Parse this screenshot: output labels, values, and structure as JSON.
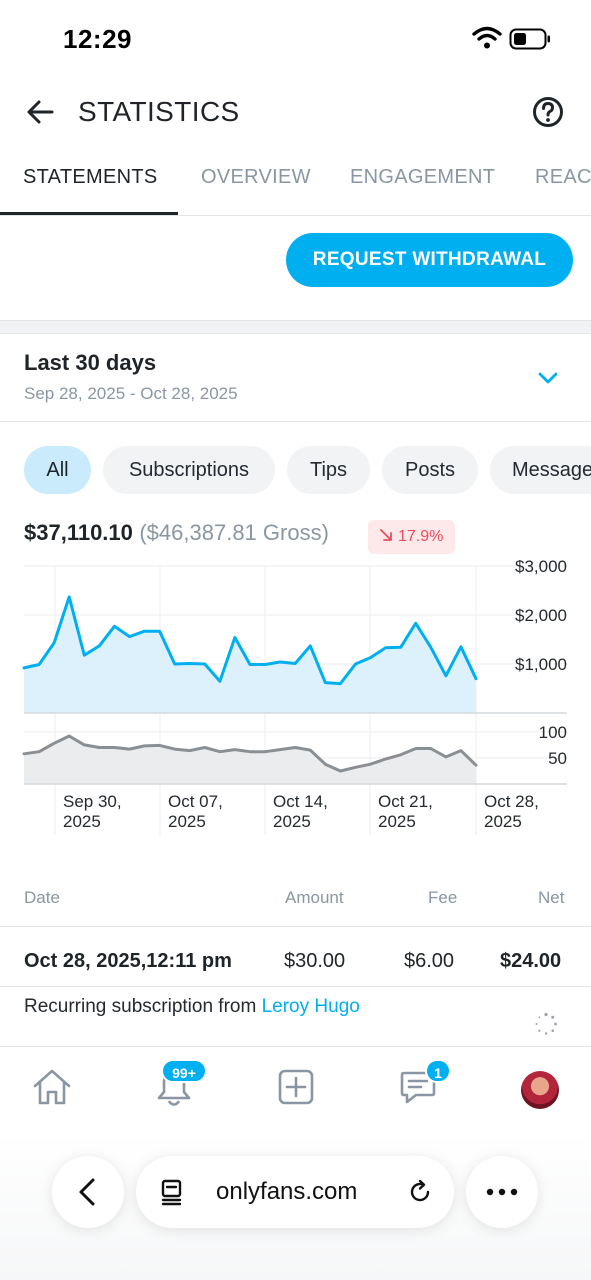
{
  "status_bar": {
    "time": "12:29"
  },
  "header": {
    "title": "STATISTICS"
  },
  "tabs": [
    {
      "label": "STATEMENTS",
      "active": true
    },
    {
      "label": "OVERVIEW",
      "active": false
    },
    {
      "label": "ENGAGEMENT",
      "active": false
    },
    {
      "label": "REACH",
      "active": false
    }
  ],
  "withdraw": {
    "label": "REQUEST WITHDRAWAL"
  },
  "date_range": {
    "title": "Last 30 days",
    "dates": "Sep 28, 2025 - Oct 28, 2025"
  },
  "filters": [
    {
      "label": "All",
      "active": true
    },
    {
      "label": "Subscriptions",
      "active": false
    },
    {
      "label": "Tips",
      "active": false
    },
    {
      "label": "Posts",
      "active": false
    },
    {
      "label": "Messages",
      "active": false
    }
  ],
  "summary": {
    "net": "$37,110.10",
    "gross": "($46,387.81 Gross)",
    "change": "17.9%",
    "change_direction": "down"
  },
  "colors": {
    "accent": "#00aff0",
    "negative": "#ef4b5b",
    "secondary_series": "#8a8f94"
  },
  "chart_data": {
    "type": "area",
    "x_ticks": [
      [
        "Sep 30,",
        "2025"
      ],
      [
        "Oct 07,",
        "2025"
      ],
      [
        "Oct 14,",
        "2025"
      ],
      [
        "Oct 21,",
        "2025"
      ],
      [
        "Oct 28,",
        "2025"
      ]
    ],
    "panels": [
      {
        "series": "amount",
        "y_ticks": [
          "$3,000",
          "$2,000",
          "$1,000"
        ],
        "y_tick_values": [
          3000,
          2000,
          1000
        ],
        "ylim": [
          0,
          3000
        ],
        "values": [
          920,
          990,
          1430,
          2370,
          1180,
          1370,
          1770,
          1560,
          1670,
          1670,
          1000,
          1010,
          1000,
          650,
          1540,
          990,
          990,
          1040,
          1010,
          1370,
          620,
          600,
          1000,
          1130,
          1330,
          1340,
          1830,
          1340,
          760,
          1350,
          700
        ]
      },
      {
        "series": "count",
        "y_ticks": [
          "100",
          "50"
        ],
        "y_tick_values": [
          100,
          50
        ],
        "ylim": [
          0,
          117
        ],
        "values": [
          58,
          62,
          78,
          92,
          75,
          70,
          70,
          67,
          73,
          74,
          67,
          64,
          70,
          62,
          66,
          62,
          62,
          66,
          70,
          65,
          38,
          25,
          32,
          38,
          48,
          56,
          68,
          68,
          52,
          64,
          36
        ]
      }
    ],
    "grid": true
  },
  "table": {
    "headers": {
      "date": "Date",
      "amount": "Amount",
      "fee": "Fee",
      "net": "Net"
    },
    "rows": [
      {
        "date": "Oct 28, 2025,12:11 pm",
        "amount": "$30.00",
        "fee": "$6.00",
        "net": "$24.00",
        "description": "Recurring subscription from",
        "from_user": "Leroy Hugo"
      }
    ]
  },
  "bottom_nav": {
    "notifications_badge": "99+",
    "messages_badge": "1"
  },
  "browser": {
    "url": "onlyfans.com"
  }
}
